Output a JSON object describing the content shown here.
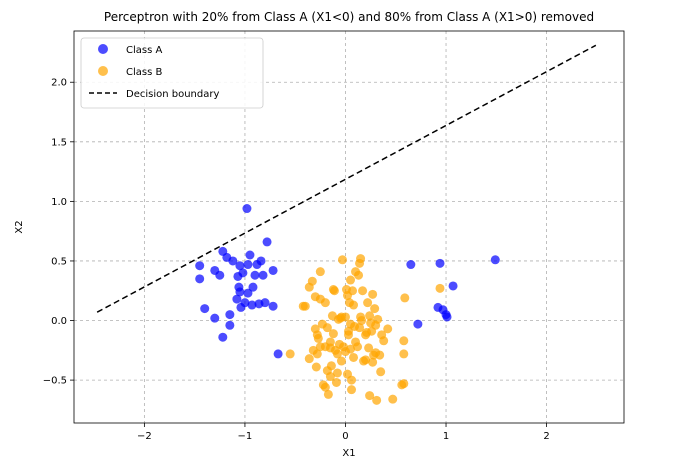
{
  "chart_data": {
    "type": "scatter",
    "title": "Perceptron with 20% from Class A (X1<0) and 80% from Class A (X1>0) removed",
    "xlabel": "X1",
    "ylabel": "X2",
    "xlim": [
      -2.7,
      2.77
    ],
    "ylim": [
      -0.86,
      2.43
    ],
    "xticks": [
      -2,
      -1,
      0,
      1,
      2
    ],
    "yticks": [
      -0.5,
      0.0,
      0.5,
      1.0,
      1.5,
      2.0
    ],
    "xtick_labels": [
      "−2",
      "−1",
      "0",
      "1",
      "2"
    ],
    "ytick_labels": [
      "−0.5",
      "0.0",
      "0.5",
      "1.0",
      "1.5",
      "2.0"
    ],
    "grid": true,
    "legend_position": "upper-left",
    "series": [
      {
        "name": "Class A",
        "color": "#0000ff",
        "points": [
          [
            -1.45,
            0.46
          ],
          [
            -1.45,
            0.35
          ],
          [
            -1.4,
            0.1
          ],
          [
            -1.3,
            0.42
          ],
          [
            -1.3,
            0.02
          ],
          [
            -1.25,
            0.38
          ],
          [
            -1.22,
            0.58
          ],
          [
            -1.22,
            -0.14
          ],
          [
            -1.18,
            0.53
          ],
          [
            -1.15,
            0.05
          ],
          [
            -1.15,
            -0.04
          ],
          [
            -1.12,
            0.5
          ],
          [
            -1.08,
            0.18
          ],
          [
            -1.07,
            0.37
          ],
          [
            -1.06,
            0.28
          ],
          [
            -1.05,
            0.24
          ],
          [
            -1.05,
            0.46
          ],
          [
            -1.04,
            0.11
          ],
          [
            -1.02,
            0.4
          ],
          [
            -1.0,
            0.15
          ],
          [
            -0.98,
            0.94
          ],
          [
            -0.97,
            0.47
          ],
          [
            -0.97,
            0.23
          ],
          [
            -0.95,
            0.55
          ],
          [
            -0.93,
            0.13
          ],
          [
            -0.92,
            0.28
          ],
          [
            -0.9,
            0.38
          ],
          [
            -0.88,
            0.47
          ],
          [
            -0.86,
            0.14
          ],
          [
            -0.84,
            0.5
          ],
          [
            -0.82,
            0.38
          ],
          [
            -0.8,
            0.15
          ],
          [
            -0.78,
            0.66
          ],
          [
            -0.72,
            0.12
          ],
          [
            -0.72,
            0.42
          ],
          [
            -0.67,
            -0.28
          ],
          [
            0.65,
            0.47
          ],
          [
            0.72,
            -0.03
          ],
          [
            0.92,
            0.11
          ],
          [
            0.94,
            0.48
          ],
          [
            0.97,
            0.09
          ],
          [
            1.0,
            0.05
          ],
          [
            1.01,
            0.03
          ],
          [
            1.07,
            0.29
          ],
          [
            1.49,
            0.51
          ]
        ]
      },
      {
        "name": "Class B",
        "color": "#ffa500",
        "points": [
          [
            -0.55,
            -0.28
          ],
          [
            -0.42,
            0.12
          ],
          [
            -0.4,
            0.12
          ],
          [
            -0.36,
            0.28
          ],
          [
            -0.33,
            0.33
          ],
          [
            -0.32,
            -0.25
          ],
          [
            -0.3,
            0.2
          ],
          [
            -0.3,
            -0.07
          ],
          [
            -0.29,
            -0.39
          ],
          [
            -0.28,
            -0.28
          ],
          [
            -0.27,
            -0.15
          ],
          [
            -0.25,
            0.41
          ],
          [
            -0.25,
            0.18
          ],
          [
            -0.23,
            -0.03
          ],
          [
            -0.22,
            -0.54
          ],
          [
            -0.2,
            0.15
          ],
          [
            -0.2,
            -0.22
          ],
          [
            -0.18,
            -0.42
          ],
          [
            -0.18,
            -0.06
          ],
          [
            -0.17,
            -0.62
          ],
          [
            -0.15,
            -0.23
          ],
          [
            -0.15,
            -0.18
          ],
          [
            -0.14,
            -0.38
          ],
          [
            -0.13,
            0.04
          ],
          [
            -0.12,
            -0.11
          ],
          [
            -0.11,
            0.25
          ],
          [
            -0.1,
            -0.25
          ],
          [
            -0.09,
            -0.52
          ],
          [
            -0.08,
            -0.44
          ],
          [
            -0.07,
            0.01
          ],
          [
            -0.06,
            -0.2
          ],
          [
            -0.05,
            0.02
          ],
          [
            -0.04,
            0.03
          ],
          [
            -0.04,
            -0.34
          ],
          [
            -0.03,
            0.51
          ],
          [
            -0.02,
            -0.22
          ],
          [
            0.0,
            0.03
          ],
          [
            0.0,
            -0.26
          ],
          [
            0.01,
            0.26
          ],
          [
            0.02,
            -0.45
          ],
          [
            0.03,
            -0.12
          ],
          [
            0.04,
            0.15
          ],
          [
            0.05,
            0.34
          ],
          [
            0.05,
            -0.24
          ],
          [
            0.06,
            -0.58
          ],
          [
            0.07,
            0.25
          ],
          [
            0.08,
            0.13
          ],
          [
            0.08,
            -0.31
          ],
          [
            0.09,
            -0.05
          ],
          [
            0.1,
            0.41
          ],
          [
            0.12,
            -0.22
          ],
          [
            0.13,
            0.38
          ],
          [
            0.14,
            -0.06
          ],
          [
            0.15,
            0.52
          ],
          [
            0.15,
            0.03
          ],
          [
            0.16,
            0.0
          ],
          [
            0.17,
            0.25
          ],
          [
            0.18,
            -0.34
          ],
          [
            0.2,
            -0.12
          ],
          [
            0.21,
            -0.1
          ],
          [
            0.22,
            0.15
          ],
          [
            0.23,
            -0.23
          ],
          [
            0.24,
            -0.63
          ],
          [
            0.25,
            -0.02
          ],
          [
            0.26,
            -0.09
          ],
          [
            0.27,
            0.22
          ],
          [
            0.28,
            -0.29
          ],
          [
            0.29,
            0.1
          ],
          [
            0.3,
            -0.27
          ],
          [
            0.3,
            -0.04
          ],
          [
            0.31,
            -0.67
          ],
          [
            0.32,
            0.01
          ],
          [
            0.34,
            -0.29
          ],
          [
            0.35,
            -0.43
          ],
          [
            0.36,
            -0.12
          ],
          [
            0.38,
            -0.17
          ],
          [
            0.42,
            -0.07
          ],
          [
            0.47,
            -0.66
          ],
          [
            0.56,
            -0.54
          ],
          [
            0.58,
            -0.53
          ],
          [
            0.58,
            -0.28
          ],
          [
            0.58,
            -0.17
          ],
          [
            0.59,
            0.19
          ],
          [
            0.94,
            0.27
          ],
          [
            -0.2,
            -0.56
          ],
          [
            -0.12,
            0.26
          ],
          [
            0.02,
            0.21
          ],
          [
            -0.25,
            -0.22
          ],
          [
            0.06,
            -0.5
          ],
          [
            0.24,
            0.04
          ],
          [
            -0.36,
            -0.32
          ],
          [
            0.14,
            0.48
          ],
          [
            0.2,
            -0.33
          ],
          [
            -0.28,
            -0.12
          ],
          [
            0.05,
            -0.03
          ],
          [
            0.1,
            -0.18
          ],
          [
            -0.08,
            -0.28
          ],
          [
            0.27,
            -0.35
          ],
          [
            0.03,
            -0.09
          ],
          [
            -0.15,
            -0.47
          ]
        ]
      }
    ],
    "lines": [
      {
        "name": "Decision boundary",
        "color": "#000000",
        "style": "dashed",
        "x": [
          -2.47,
          2.49
        ],
        "y": [
          0.07,
          2.31
        ]
      }
    ]
  }
}
